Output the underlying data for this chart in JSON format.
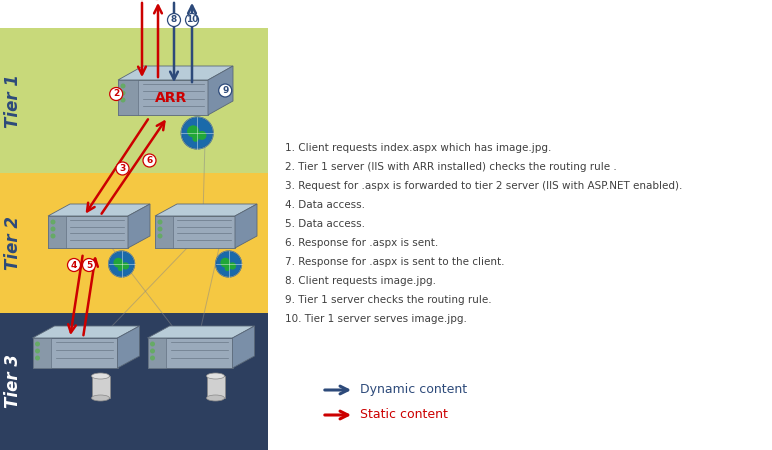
{
  "tier1_color": "#c8d97a",
  "tier2_color": "#f5c842",
  "tier3_color": "#2d3f5f",
  "tier1_label": "Tier 1",
  "tier2_label": "Tier 2",
  "tier3_label": "Tier 3",
  "tier_label_color": "#2d4a7a",
  "tier3_label_color": "#ffffff",
  "arr_label": "ARR",
  "arr_color": "#cc0000",
  "dynamic_color": "#2d4a7a",
  "static_color": "#cc0000",
  "legend_dynamic": "Dynamic content",
  "legend_static": "Static content",
  "annotations": [
    "1. Client requests index.aspx which has image.jpg.",
    "2. Tier 1 server (IIS with ARR installed) checks the routing rule .",
    "3. Request for .aspx is forwarded to tier 2 server (IIS with ASP.NET enabled).",
    "4. Data access.",
    "5. Data access.",
    "6. Response for .aspx is sent.",
    "7. Response for .aspx is sent to the client.",
    "8. Client requests image.jpg.",
    "9. Tier 1 server checks the routing rule.",
    "10. Tier 1 server serves image.jpg."
  ],
  "text_color": "#404040",
  "bg_color": "#ffffff"
}
